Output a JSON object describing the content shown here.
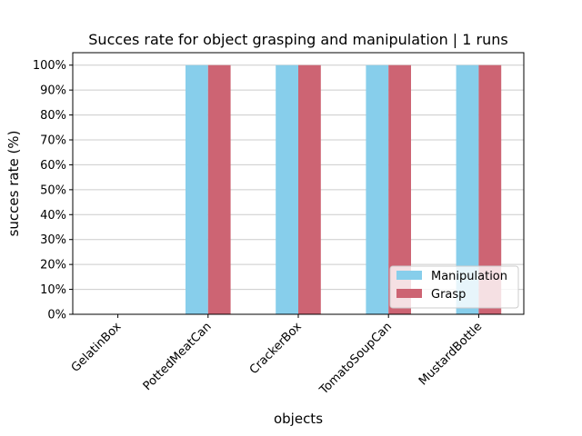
{
  "chart_data": {
    "type": "bar",
    "title": "Succes rate for object grasping and manipulation | 1 runs",
    "xlabel": "objects",
    "ylabel": "succes rate (%)",
    "categories": [
      "GelatinBox",
      "PottedMeatCan",
      "CrackerBox",
      "TomatoSoupCan",
      "MustardBottle"
    ],
    "series": [
      {
        "name": "Manipulation",
        "color": "#87ceeb",
        "values": [
          0,
          100,
          100,
          100,
          100
        ]
      },
      {
        "name": "Grasp",
        "color": "#cd6473",
        "values": [
          0,
          100,
          100,
          100,
          100
        ]
      }
    ],
    "ylim": [
      0,
      105
    ],
    "yticks": [
      {
        "value": 0,
        "label": "0%"
      },
      {
        "value": 10,
        "label": "10%"
      },
      {
        "value": 20,
        "label": "20%"
      },
      {
        "value": 30,
        "label": "30%"
      },
      {
        "value": 40,
        "label": "40%"
      },
      {
        "value": 50,
        "label": "50%"
      },
      {
        "value": 60,
        "label": "60%"
      },
      {
        "value": 70,
        "label": "70%"
      },
      {
        "value": 80,
        "label": "80%"
      },
      {
        "value": 90,
        "label": "90%"
      },
      {
        "value": 100,
        "label": "100%"
      }
    ],
    "grid": "horizontal",
    "legend_position": "lower-right"
  }
}
